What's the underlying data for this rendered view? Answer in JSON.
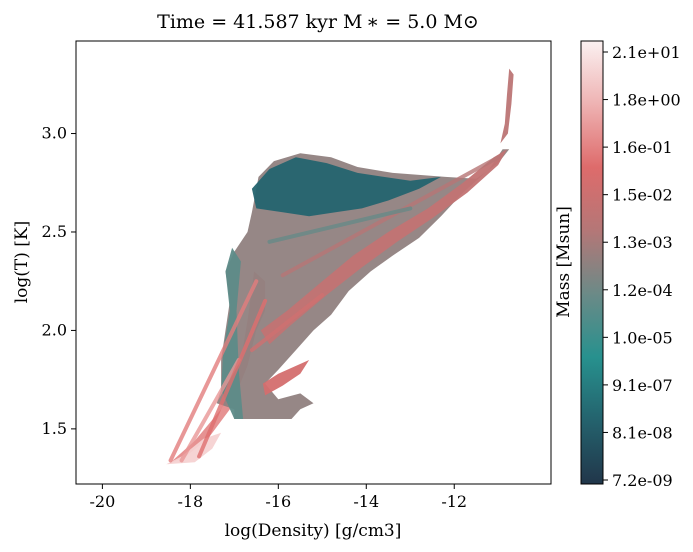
{
  "chart_data": {
    "type": "heatmap",
    "title": "Time = 41.587 kyr    M ∗ = 5.0 M⊙",
    "xlabel": "log(Density) [g/cm3]",
    "ylabel": "log(T) [K]",
    "xlim": [
      -20.6,
      -9.8
    ],
    "ylim": [
      1.22,
      3.47
    ],
    "x_ticks": [
      -20,
      -18,
      -16,
      -14,
      -12
    ],
    "x_tick_labels": [
      "-20",
      "-18",
      "-16",
      "-14",
      "-12"
    ],
    "y_ticks": [
      1.5,
      2.0,
      2.5,
      3.0
    ],
    "y_tick_labels": [
      "1.5",
      "2.0",
      "2.5",
      "3.0"
    ],
    "grid": false,
    "colorbar": {
      "label": "Mass [Msun]",
      "tick_labels": [
        "7.2e-09",
        "8.1e-08",
        "9.1e-07",
        "1.0e-05",
        "1.2e-04",
        "1.3e-03",
        "1.5e-02",
        "1.6e-01",
        "1.8e+00",
        "2.1e+01"
      ],
      "colors": [
        "#21364a",
        "#24626d",
        "#27918e",
        "#6b8a87",
        "#b47777",
        "#de6b6b",
        "#eeb2b2",
        "#fbf1f1"
      ]
    },
    "regions": [
      {
        "name": "cold-ridge",
        "polygon": [
          [
            -18.5,
            1.32
          ],
          [
            -18.1,
            1.36
          ],
          [
            -17.6,
            1.45
          ],
          [
            -17.1,
            1.6
          ],
          [
            -16.7,
            1.82
          ],
          [
            -16.5,
            2.0
          ],
          [
            -16.3,
            2.1
          ],
          [
            -16.3,
            2.25
          ],
          [
            -16.55,
            2.3
          ],
          [
            -16.7,
            2.05
          ],
          [
            -16.85,
            1.85
          ],
          [
            -17.3,
            1.6
          ],
          [
            -17.9,
            1.44
          ],
          [
            -18.4,
            1.34
          ]
        ],
        "color_level": 0.78
      },
      {
        "name": "cold-base",
        "polygon": [
          [
            -18.55,
            1.32
          ],
          [
            -17.9,
            1.33
          ],
          [
            -17.5,
            1.4
          ],
          [
            -17.3,
            1.48
          ],
          [
            -17.7,
            1.45
          ],
          [
            -18.2,
            1.36
          ]
        ],
        "color_level": 0.93
      },
      {
        "name": "main-body",
        "polygon": [
          [
            -17.0,
            1.55
          ],
          [
            -15.7,
            1.55
          ],
          [
            -15.5,
            1.6
          ],
          [
            -15.2,
            1.63
          ],
          [
            -15.5,
            1.68
          ],
          [
            -16.0,
            1.65
          ],
          [
            -16.3,
            1.73
          ],
          [
            -16.0,
            1.8
          ],
          [
            -15.6,
            1.9
          ],
          [
            -15.2,
            2.0
          ],
          [
            -14.8,
            2.08
          ],
          [
            -14.4,
            2.2
          ],
          [
            -13.9,
            2.3
          ],
          [
            -13.4,
            2.38
          ],
          [
            -12.8,
            2.47
          ],
          [
            -12.3,
            2.58
          ],
          [
            -11.8,
            2.7
          ],
          [
            -11.2,
            2.82
          ],
          [
            -10.9,
            2.92
          ],
          [
            -10.75,
            2.92
          ],
          [
            -11.0,
            2.85
          ],
          [
            -11.5,
            2.77
          ],
          [
            -12.2,
            2.78
          ],
          [
            -12.8,
            2.79
          ],
          [
            -13.4,
            2.8
          ],
          [
            -14.2,
            2.83
          ],
          [
            -14.8,
            2.88
          ],
          [
            -15.5,
            2.9
          ],
          [
            -16.1,
            2.86
          ],
          [
            -16.45,
            2.78
          ],
          [
            -16.6,
            2.6
          ],
          [
            -16.7,
            2.5
          ],
          [
            -17.0,
            2.4
          ],
          [
            -17.2,
            2.3
          ],
          [
            -17.1,
            2.15
          ],
          [
            -17.2,
            2.0
          ],
          [
            -17.3,
            1.85
          ],
          [
            -17.3,
            1.7
          ],
          [
            -17.4,
            1.63
          ],
          [
            -17.0,
            1.6
          ]
        ],
        "color_level": 0.5
      },
      {
        "name": "hot-shell",
        "polygon": [
          [
            -16.6,
            2.72
          ],
          [
            -16.2,
            2.82
          ],
          [
            -15.6,
            2.88
          ],
          [
            -14.9,
            2.85
          ],
          [
            -14.2,
            2.8
          ],
          [
            -13.6,
            2.78
          ],
          [
            -13.0,
            2.76
          ],
          [
            -12.3,
            2.78
          ],
          [
            -12.8,
            2.72
          ],
          [
            -13.5,
            2.66
          ],
          [
            -14.1,
            2.62
          ],
          [
            -14.7,
            2.6
          ],
          [
            -15.3,
            2.58
          ],
          [
            -15.9,
            2.6
          ],
          [
            -16.5,
            2.62
          ]
        ],
        "color_level": 0.15
      },
      {
        "name": "left-shell",
        "polygon": [
          [
            -17.0,
            1.55
          ],
          [
            -16.8,
            1.55
          ],
          [
            -16.9,
            1.8
          ],
          [
            -16.95,
            2.1
          ],
          [
            -16.85,
            2.35
          ],
          [
            -17.05,
            2.42
          ],
          [
            -17.2,
            2.3
          ],
          [
            -17.1,
            2.1
          ],
          [
            -17.25,
            1.9
          ],
          [
            -17.3,
            1.7
          ]
        ],
        "color_level": 0.4
      },
      {
        "name": "dense-filament",
        "polygon": [
          [
            -16.4,
            2.0
          ],
          [
            -15.8,
            2.1
          ],
          [
            -15.0,
            2.25
          ],
          [
            -14.3,
            2.38
          ],
          [
            -13.5,
            2.5
          ],
          [
            -12.6,
            2.62
          ],
          [
            -11.8,
            2.75
          ],
          [
            -11.1,
            2.88
          ],
          [
            -10.8,
            2.92
          ],
          [
            -11.0,
            2.84
          ],
          [
            -11.7,
            2.7
          ],
          [
            -12.5,
            2.57
          ],
          [
            -13.3,
            2.45
          ],
          [
            -14.1,
            2.32
          ],
          [
            -14.9,
            2.18
          ],
          [
            -15.7,
            2.03
          ],
          [
            -16.2,
            1.93
          ]
        ],
        "color_level": 0.62
      },
      {
        "name": "side-loop",
        "polygon": [
          [
            -16.3,
            1.67
          ],
          [
            -15.9,
            1.72
          ],
          [
            -15.5,
            1.78
          ],
          [
            -15.3,
            1.85
          ],
          [
            -15.6,
            1.82
          ],
          [
            -16.0,
            1.78
          ],
          [
            -16.35,
            1.73
          ]
        ],
        "color_level": 0.68
      },
      {
        "name": "hot-tail",
        "polygon": [
          [
            -10.95,
            2.95
          ],
          [
            -10.85,
            3.05
          ],
          [
            -10.8,
            3.2
          ],
          [
            -10.75,
            3.33
          ],
          [
            -10.65,
            3.3
          ],
          [
            -10.7,
            3.15
          ],
          [
            -10.78,
            3.0
          ]
        ],
        "color_level": 0.6
      }
    ],
    "streaks": [
      {
        "from": [
          -18.45,
          1.34
        ],
        "to": [
          -16.5,
          2.25
        ],
        "color_level": 0.75
      },
      {
        "from": [
          -18.2,
          1.34
        ],
        "to": [
          -16.9,
          1.85
        ],
        "color_level": 0.8
      },
      {
        "from": [
          -17.8,
          1.36
        ],
        "to": [
          -16.3,
          2.15
        ],
        "color_level": 0.72
      },
      {
        "from": [
          -16.6,
          1.9
        ],
        "to": [
          -15.0,
          2.18
        ],
        "color_level": 0.66
      },
      {
        "from": [
          -15.9,
          2.28
        ],
        "to": [
          -11.0,
          2.88
        ],
        "color_level": 0.58
      },
      {
        "from": [
          -16.2,
          2.45
        ],
        "to": [
          -13.0,
          2.62
        ],
        "color_level": 0.42
      }
    ]
  }
}
